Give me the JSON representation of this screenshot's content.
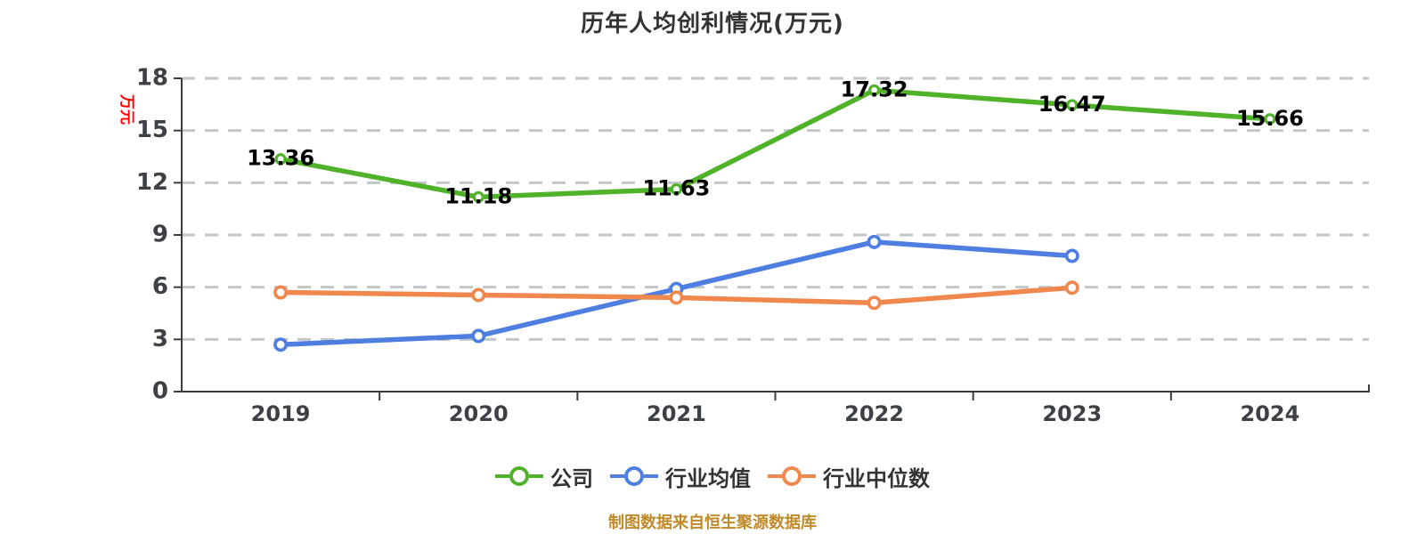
{
  "title": "历年人均创利情况(万元)",
  "caption": "制图数据来自恒生聚源数据库",
  "y_axis_unit": "万元",
  "chart_data": {
    "type": "line",
    "title": "历年人均创利情况(万元)",
    "xlabel": "",
    "ylabel": "万元",
    "ylim": [
      0,
      18
    ],
    "y_ticks": [
      0,
      3,
      6,
      9,
      12,
      15,
      18
    ],
    "grid": "horizontal-dashed",
    "legend_position": "bottom",
    "categories": [
      "2019",
      "2020",
      "2021",
      "2022",
      "2023",
      "2024"
    ],
    "series": [
      {
        "name": "公司",
        "slug": "company",
        "color": "#4fb229",
        "values": [
          13.36,
          11.18,
          11.63,
          17.32,
          16.47,
          15.66
        ],
        "show_labels": true
      },
      {
        "name": "行业均值",
        "slug": "industry-average",
        "color": "#4d7ee0",
        "values": [
          2.7,
          3.2,
          5.9,
          8.6,
          7.8,
          null
        ],
        "show_labels": false
      },
      {
        "name": "行业中位数",
        "slug": "industry-median",
        "color": "#f0874d",
        "values": [
          5.7,
          5.55,
          5.4,
          5.1,
          5.97,
          null
        ],
        "show_labels": false
      }
    ]
  },
  "colors": {
    "background": "#ffffff",
    "title_text": "#333333",
    "axis": "#3c3c3c",
    "tick_text": "#3d4045",
    "gridline": "#c2c6c6",
    "value_label": "#000000",
    "y_unit_label": "#fe0000",
    "caption_text": "#c08a2a",
    "legend_text": "#333333"
  }
}
